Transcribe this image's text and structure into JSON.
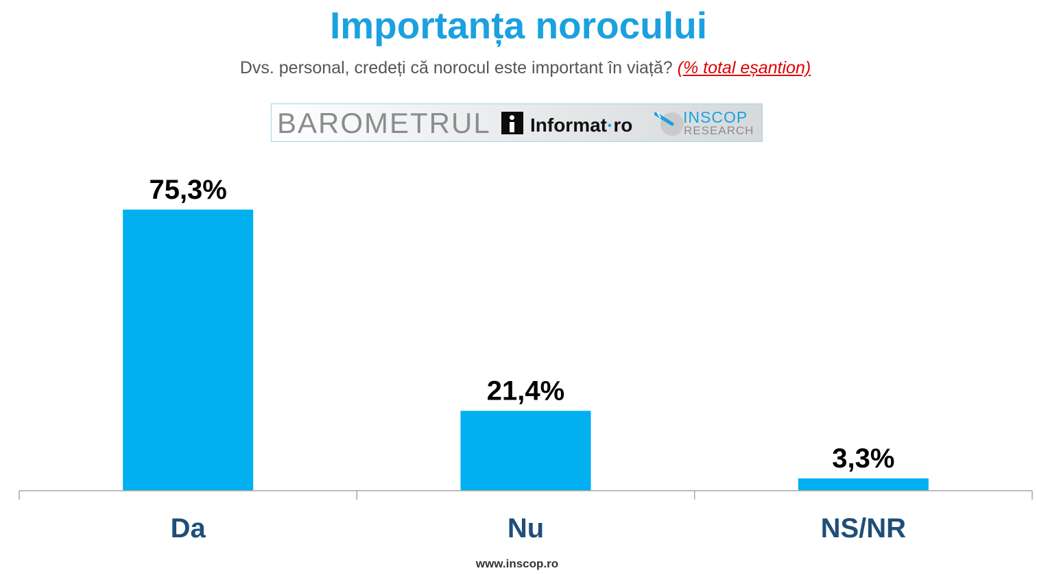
{
  "header": {
    "title": "Importanța norocului",
    "subtitle_question": "Dvs. personal, credeți că norocul este important în viață?",
    "subtitle_note": "(% total eșantion)"
  },
  "logo_strip": {
    "barometrul": "BAROMETRUL",
    "informat_a": "Informat",
    "informat_sep": "·",
    "informat_b": "ro",
    "inscop": "INSCOP",
    "research": "RESEARCH"
  },
  "footer": {
    "url": "www.inscop.ro"
  },
  "colors": {
    "bar": "#00b0f0",
    "title": "#1aa1e0",
    "category": "#1f4e79",
    "label": "#000000",
    "axis": "#a6a6a6"
  },
  "chart_data": {
    "type": "bar",
    "title": "Importanța norocului",
    "categories": [
      "Da",
      "Nu",
      "NS/NR"
    ],
    "values": [
      75.3,
      21.4,
      3.3
    ],
    "data_labels": [
      "75,3%",
      "21,4%",
      "3,3%"
    ],
    "ylim": [
      0,
      76
    ],
    "grid": false,
    "legend": "none"
  }
}
